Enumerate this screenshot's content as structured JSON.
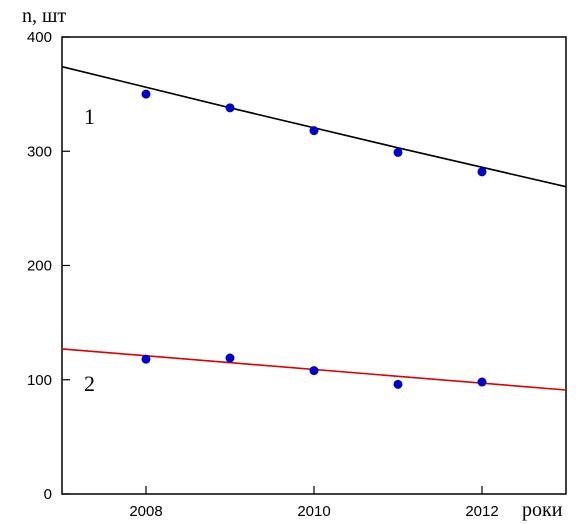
{
  "chart_data": {
    "type": "scatter",
    "ylabel": "n, шт",
    "xlabel": "роки",
    "xlim": [
      2007,
      2013
    ],
    "ylim": [
      0,
      400
    ],
    "x_ticks": [
      "2008",
      "2010",
      "2012"
    ],
    "y_ticks": [
      "0",
      "100",
      "200",
      "300",
      "400"
    ],
    "grid": false,
    "series": [
      {
        "label": "1",
        "point_color": "#0000cc",
        "trend_color": "#000000",
        "points": [
          {
            "x": 2008,
            "y": 350
          },
          {
            "x": 2009,
            "y": 338
          },
          {
            "x": 2010,
            "y": 318
          },
          {
            "x": 2011,
            "y": 299
          },
          {
            "x": 2012,
            "y": 282
          }
        ],
        "trend": [
          {
            "x": 2007,
            "y": 374
          },
          {
            "x": 2009,
            "y": 338
          },
          {
            "x": 2011,
            "y": 303
          },
          {
            "x": 2013,
            "y": 269
          }
        ]
      },
      {
        "label": "2",
        "point_color": "#0000cc",
        "trend_color": "#dd0000",
        "points": [
          {
            "x": 2008,
            "y": 118
          },
          {
            "x": 2009,
            "y": 119
          },
          {
            "x": 2010,
            "y": 108
          },
          {
            "x": 2011,
            "y": 96
          },
          {
            "x": 2012,
            "y": 98
          }
        ],
        "trend": [
          {
            "x": 2007,
            "y": 127
          },
          {
            "x": 2013,
            "y": 91
          }
        ]
      }
    ]
  }
}
